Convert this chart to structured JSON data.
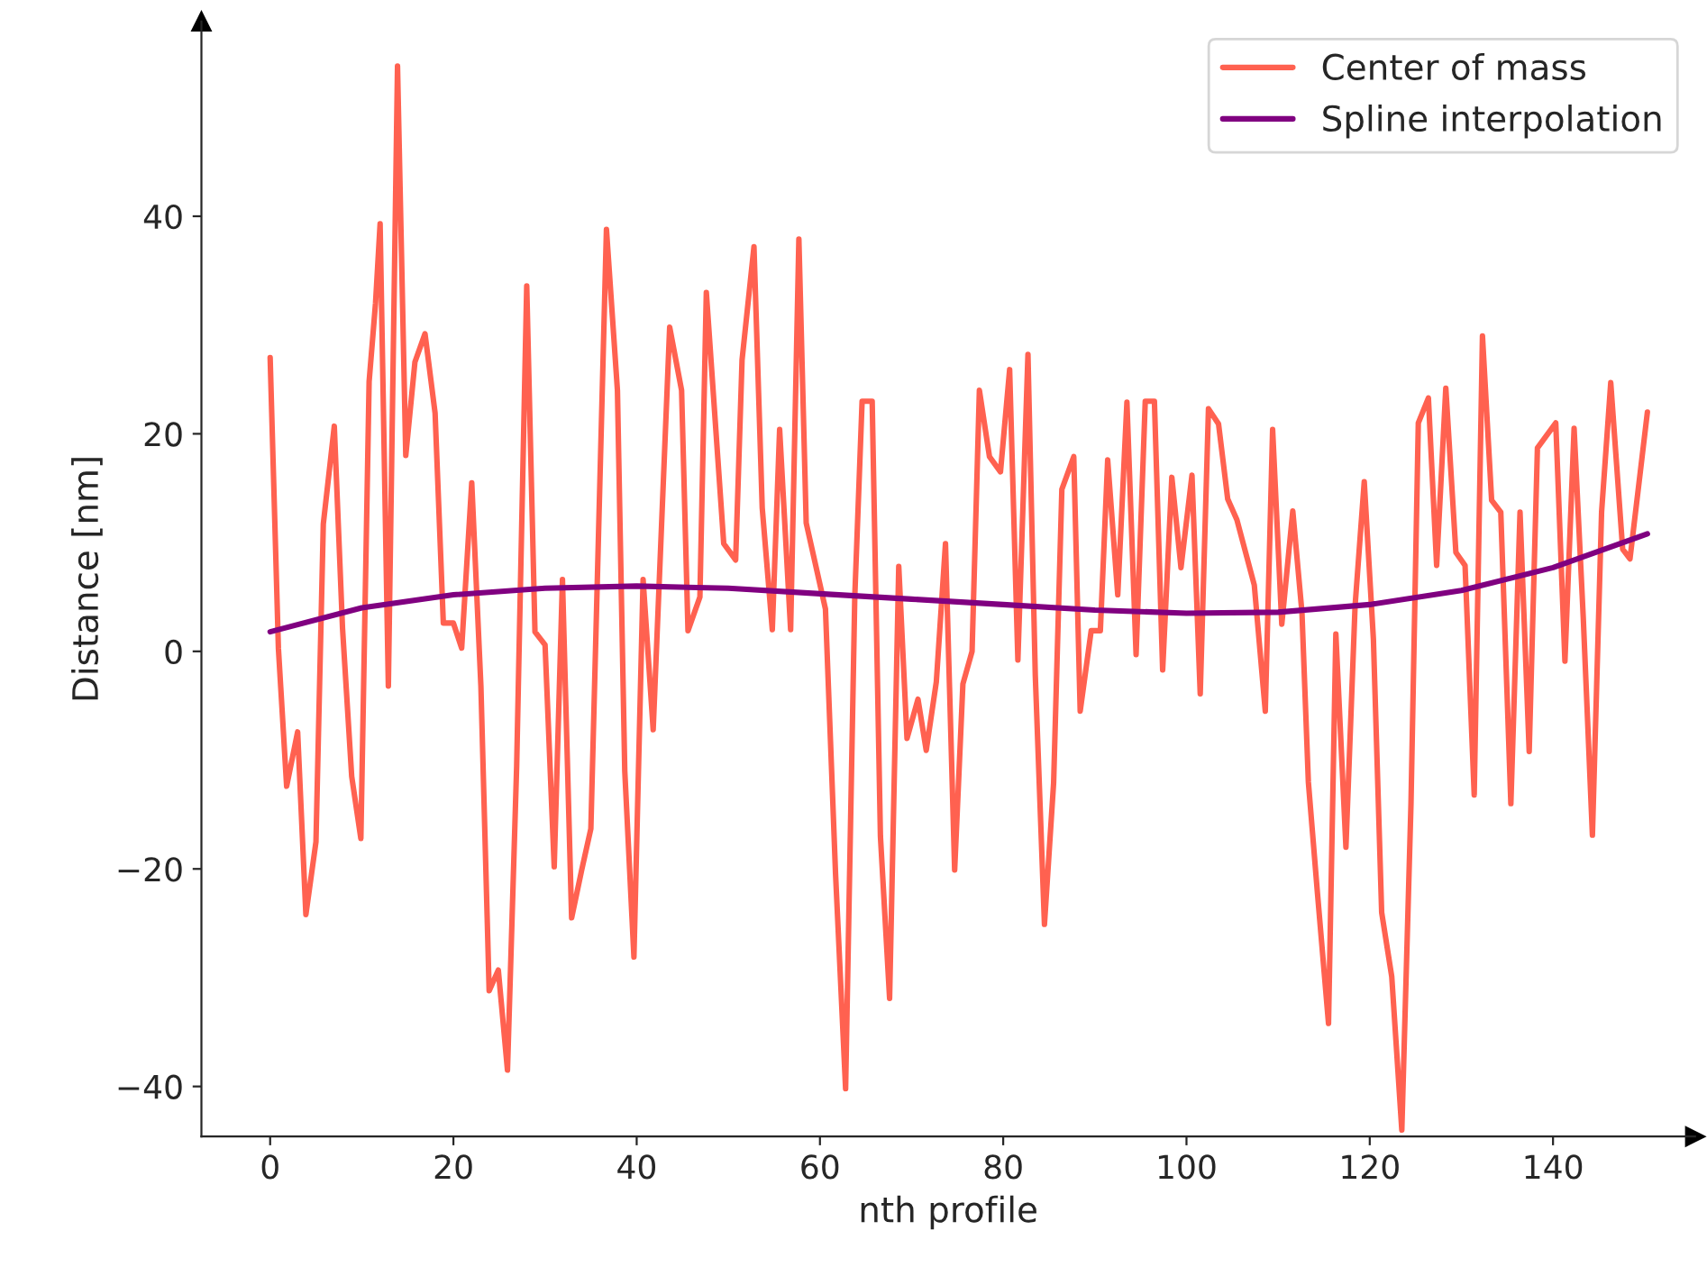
{
  "chart_data": {
    "type": "line",
    "xlabel": "nth profile",
    "ylabel": "Distance [nm]",
    "xlim": [
      -7.5,
      155.5
    ],
    "ylim": [
      -44.6,
      57.9
    ],
    "xticks": [
      0,
      20,
      40,
      60,
      80,
      100,
      120,
      140
    ],
    "yticks": [
      {
        "value": -40,
        "label": "−40"
      },
      {
        "value": -20,
        "label": "−20"
      },
      0,
      20,
      40
    ],
    "grid": false,
    "legend": "top right",
    "marker": "none",
    "line_style": "solid",
    "series": [
      {
        "name": "Center of mass",
        "color": "#ff6150",
        "x": [
          0,
          0.9,
          1.8,
          3.0,
          3.9,
          5.0,
          5.8,
          7.0,
          7.9,
          8.9,
          9.9,
          10.8,
          11.5,
          12.0,
          12.9,
          13.9,
          14.8,
          15.8,
          16.9,
          18.0,
          18.9,
          20.0,
          20.9,
          22.0,
          23.0,
          23.9,
          24.9,
          25.9,
          26.9,
          28.0,
          28.9,
          30.0,
          31.0,
          31.9,
          32.9,
          34.0,
          35.0,
          36.7,
          37.9,
          38.7,
          39.7,
          40.7,
          41.8,
          43.6,
          44.9,
          45.6,
          46.9,
          47.6,
          49.5,
          50.8,
          51.5,
          52.8,
          53.7,
          54.8,
          55.6,
          56.8,
          57.7,
          58.5,
          60.6,
          61.7,
          62.8,
          63.8,
          64.6,
          65.7,
          66.6,
          67.6,
          68.6,
          69.5,
          70.7,
          71.6,
          72.7,
          73.7,
          74.7,
          75.6,
          76.6,
          77.4,
          78.5,
          79.7,
          80.7,
          81.6,
          82.7,
          83.5,
          84.5,
          85.5,
          86.4,
          87.7,
          88.4,
          89.6,
          90.6,
          91.4,
          92.5,
          93.5,
          94.5,
          95.5,
          96.5,
          97.4,
          98.4,
          99.4,
          100.6,
          101.5,
          102.4,
          103.5,
          104.5,
          105.5,
          107.4,
          108.6,
          109.4,
          110.4,
          111.6,
          112.6,
          113.3,
          114.3,
          115.5,
          116.3,
          117.4,
          118.4,
          119.4,
          120.4,
          121.3,
          122.4,
          123.5,
          124.5,
          125.3,
          126.4,
          127.3,
          128.3,
          129.4,
          130.4,
          131.4,
          132.3,
          133.3,
          134.3,
          135.4,
          136.4,
          137.4,
          138.3,
          140.3,
          141.3,
          142.3,
          143.3,
          144.3,
          145.3,
          146.3,
          147.6,
          148.4,
          150.3
        ],
        "values": [
          27,
          0.3,
          -12.4,
          -7.4,
          -24.2,
          -17.5,
          11.7,
          20.7,
          2.1,
          -11.5,
          -17.2,
          24.8,
          32,
          39.3,
          -3.2,
          53.8,
          18,
          26.6,
          29.2,
          21.9,
          2.6,
          2.6,
          0.3,
          15.5,
          -3.2,
          -31.2,
          -29.3,
          -38.5,
          -10.6,
          33.6,
          1.8,
          0.6,
          -19.8,
          6.6,
          -24.5,
          -20.1,
          -16.3,
          38.8,
          24,
          -11,
          -28.1,
          6.6,
          -7.2,
          29.8,
          24,
          1.9,
          5,
          33,
          9.9,
          8.4,
          26.8,
          37.2,
          13.2,
          2,
          20.4,
          2,
          37.9,
          11.8,
          3.9,
          -20.4,
          -40.2,
          5,
          23,
          23,
          -17,
          -31.9,
          7.8,
          -8,
          -4.4,
          -9.1,
          -2.8,
          9.9,
          -20.1,
          -3,
          0,
          24,
          17.9,
          16.5,
          25.9,
          -0.8,
          27.3,
          -2.2,
          -25.1,
          -12.1,
          14.9,
          17.9,
          -5.5,
          1.9,
          1.9,
          17.6,
          5.2,
          22.9,
          -0.3,
          23,
          23,
          -1.7,
          16,
          7.7,
          16.2,
          -3.9,
          22.3,
          20.9,
          14,
          12.1,
          6.1,
          -5.5,
          20.4,
          2.5,
          12.9,
          3.6,
          -12,
          -22.3,
          -34.2,
          1.6,
          -18,
          4.2,
          15.6,
          1.1,
          -24,
          -29.9,
          -44,
          -14,
          21,
          23.3,
          7.9,
          24.2,
          9.1,
          7.9,
          -13.2,
          29,
          13.9,
          12.8,
          -14,
          12.8,
          -9.2,
          18.7,
          21,
          -0.9,
          20.5,
          3.1,
          -16.9,
          12.8,
          24.7,
          9.4,
          8.5,
          22
        ]
      },
      {
        "name": "Spline interpolation",
        "color": "#800080",
        "x": [
          0,
          10,
          20,
          30,
          40,
          50,
          60,
          70,
          80,
          90,
          100,
          110,
          120,
          130,
          140,
          150.3
        ],
        "values": [
          1.8,
          4.0,
          5.2,
          5.8,
          6.0,
          5.8,
          5.3,
          4.8,
          4.3,
          3.8,
          3.5,
          3.6,
          4.3,
          5.6,
          7.7,
          10.8
        ]
      }
    ]
  }
}
